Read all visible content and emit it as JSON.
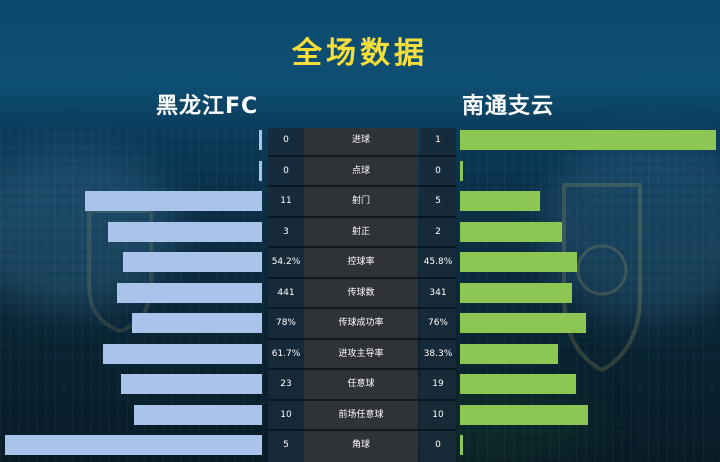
{
  "title": "全场数据",
  "home_team": "黑龙江FC",
  "away_team": "南通支云",
  "colors": {
    "title": "#f6de3a",
    "home_bar": "#a9c3ea",
    "away_bar": "#8cc753",
    "center": "#2f3237"
  },
  "chart_data": {
    "type": "bar",
    "categories": [
      "进球",
      "点球",
      "射门",
      "射正",
      "控球率",
      "传球数",
      "传球成功率",
      "进攻主导率",
      "任意球",
      "前场任意球",
      "角球"
    ],
    "series": [
      {
        "name": "黑龙江FC",
        "values": [
          0,
          0,
          11,
          3,
          54.2,
          441,
          78,
          61.7,
          23,
          10,
          5
        ],
        "labels": [
          "0",
          "0",
          "11",
          "3",
          "54.2%",
          "441",
          "78%",
          "61.7%",
          "23",
          "10",
          "5"
        ]
      },
      {
        "name": "南通支云",
        "values": [
          1,
          0,
          5,
          2,
          45.8,
          341,
          76,
          38.3,
          19,
          10,
          0
        ],
        "labels": [
          "1",
          "0",
          "5",
          "2",
          "45.8%",
          "341",
          "76%",
          "38.3%",
          "19",
          "10",
          "0"
        ]
      }
    ]
  }
}
